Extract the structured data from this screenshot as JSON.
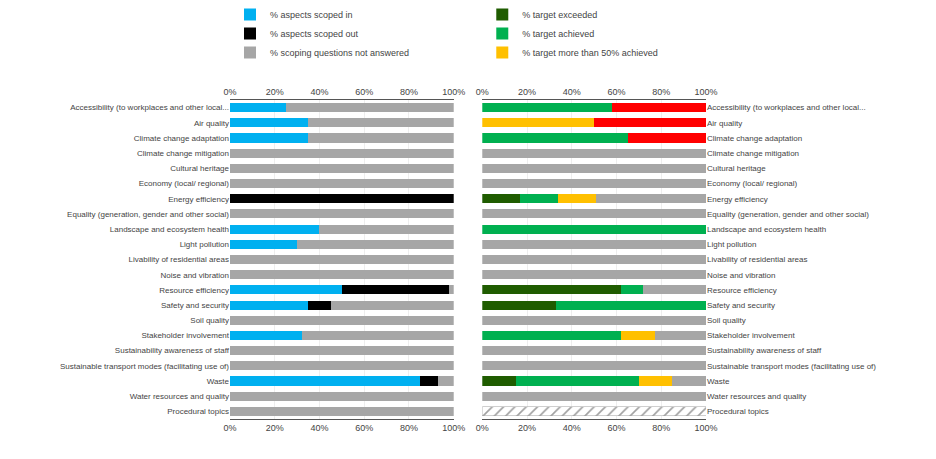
{
  "chart_data": [
    {
      "type": "bar",
      "orientation": "horizontal",
      "stacked": true,
      "grid": true,
      "legend": "top",
      "categories": [
        "Accessibility (to workplaces and other local...",
        "Air quality",
        "Climate change adaptation",
        "Climate change mitigation",
        "Cultural heritage",
        "Economy (local/ regional)",
        "Energy efficiency",
        "Equality (generation, gender and other social)",
        "Landscape and ecosystem health",
        "Light pollution",
        "Livability of residential areas",
        "Noise and vibration",
        "Resource efficiency",
        "Safety and security",
        "Soil quality",
        "Stakeholder involvement",
        "Sustainability awareness of staff",
        "Sustainable transport modes (facilitating use of)",
        "Waste",
        "Water resources and quality",
        "Procedural topics"
      ],
      "xlim": [
        0,
        100
      ],
      "xticks": [
        {
          "value": 0,
          "label": "0%"
        },
        {
          "value": 20,
          "label": "20%"
        },
        {
          "value": 40,
          "label": "40%"
        },
        {
          "value": 60,
          "label": "60%"
        },
        {
          "value": 80,
          "label": "80%"
        },
        {
          "value": 100,
          "label": "100%"
        }
      ],
      "series": [
        {
          "name": "% aspects scoped in",
          "color": "#00b0f0",
          "values": [
            25,
            35,
            35,
            0,
            0,
            0,
            0,
            0,
            40,
            30,
            0,
            0,
            50,
            35,
            0,
            32,
            0,
            0,
            85,
            0,
            0
          ]
        },
        {
          "name": "% aspects scoped out",
          "color": "#000000",
          "values": [
            0,
            0,
            0,
            0,
            0,
            0,
            100,
            0,
            0,
            0,
            0,
            0,
            48,
            10,
            0,
            0,
            0,
            0,
            8,
            0,
            0
          ]
        },
        {
          "name": "% scoping questions not answered",
          "color": "#a6a6a6",
          "values": [
            75,
            65,
            65,
            100,
            100,
            100,
            0,
            100,
            60,
            70,
            100,
            100,
            2,
            55,
            100,
            68,
            100,
            100,
            7,
            100,
            100
          ]
        }
      ]
    },
    {
      "type": "bar",
      "orientation": "horizontal",
      "stacked": true,
      "grid": true,
      "legend": "top",
      "categories": [
        "Accessibility (to workplaces and other local...",
        "Air quality",
        "Climate change adaptation",
        "Climate change mitigation",
        "Cultural heritage",
        "Economy (local/ regional)",
        "Energy efficiency",
        "Equality (generation, gender and other social)",
        "Landscape and ecosystem health",
        "Light pollution",
        "Livability of residential areas",
        "Noise and vibration",
        "Resource efficiency",
        "Safety and security",
        "Soil quality",
        "Stakeholder involvement",
        "Sustainability awareness of staff",
        "Sustainable transport modes (facilitating use of)",
        "Waste",
        "Water resources and quality",
        "Procedural topics"
      ],
      "xlim": [
        0,
        100
      ],
      "xticks": [
        {
          "value": 0,
          "label": "0%"
        },
        {
          "value": 20,
          "label": "20%"
        },
        {
          "value": 40,
          "label": "40%"
        },
        {
          "value": 60,
          "label": "60%"
        },
        {
          "value": 80,
          "label": "80%"
        },
        {
          "value": 100,
          "label": "100%"
        }
      ],
      "series": [
        {
          "name": "% target exceeded",
          "color": "#1f5c00",
          "values": [
            0,
            0,
            0,
            0,
            0,
            0,
            17,
            0,
            0,
            0,
            0,
            0,
            62,
            33,
            0,
            0,
            0,
            0,
            15,
            0,
            0
          ]
        },
        {
          "name": "% target achieved",
          "color": "#00b050",
          "values": [
            58,
            0,
            65,
            0,
            0,
            0,
            17,
            0,
            100,
            0,
            0,
            0,
            10,
            67,
            0,
            62,
            0,
            0,
            55,
            0,
            0
          ]
        },
        {
          "name": "% target more than 50% achieved",
          "color": "#ffc000",
          "values": [
            0,
            50,
            0,
            0,
            0,
            0,
            17,
            0,
            0,
            0,
            0,
            0,
            0,
            0,
            0,
            15,
            0,
            0,
            15,
            0,
            0
          ]
        },
        {
          "color": "#ff0000",
          "values": [
            42,
            50,
            35,
            0,
            0,
            0,
            0,
            0,
            0,
            0,
            0,
            0,
            0,
            0,
            0,
            0,
            0,
            0,
            0,
            0,
            0
          ]
        },
        {
          "color": "#a6a6a6",
          "values": [
            0,
            0,
            0,
            100,
            100,
            100,
            49,
            100,
            0,
            100,
            100,
            100,
            28,
            0,
            100,
            23,
            100,
            100,
            15,
            100,
            0
          ]
        },
        {
          "color": "#ffffff",
          "marker": "hatch",
          "values": [
            null,
            null,
            null,
            null,
            null,
            null,
            null,
            null,
            null,
            null,
            null,
            null,
            null,
            null,
            null,
            null,
            null,
            null,
            null,
            null,
            100
          ]
        }
      ]
    }
  ]
}
